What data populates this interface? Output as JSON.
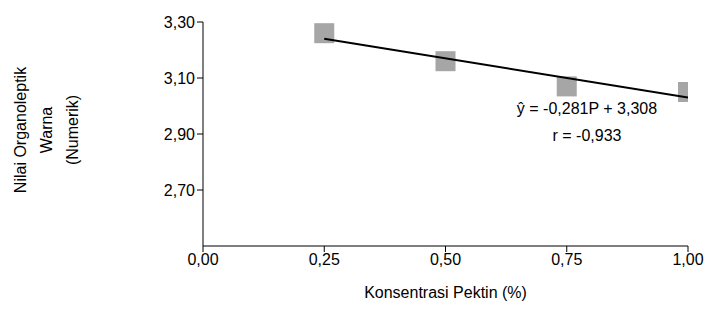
{
  "chart_data": {
    "type": "scatter",
    "x_label": "Konsentrasi Pektin (%)",
    "y_label": [
      "Nilai Organoleptik",
      "Warna",
      "(Numerik)"
    ],
    "annotations": [
      "ŷ = -0,281P + 3,308",
      "r = -0,933"
    ],
    "series": [
      {
        "type": "scatter",
        "color": "#a6a6a6",
        "marker": "square",
        "x": [
          0.25,
          0.5,
          0.75,
          1.0
        ],
        "values": [
          3.26,
          3.16,
          3.07,
          3.05
        ]
      },
      {
        "type": "line",
        "color": "#000000",
        "line_style": "solid",
        "x": [
          0.25,
          1.0
        ],
        "values": [
          3.24,
          3.03
        ]
      }
    ],
    "xlim": [
      0,
      1
    ],
    "xticks": [
      {
        "value": 0,
        "label": "0,00"
      },
      {
        "value": 0.25,
        "label": "0,25"
      },
      {
        "value": 0.5,
        "label": "0,50"
      },
      {
        "value": 0.75,
        "label": "0,75"
      },
      {
        "value": 1,
        "label": "1,00"
      }
    ],
    "ylim": [
      2.5,
      3.3
    ],
    "yticks": [
      {
        "value": 2.7,
        "label": "2,70"
      },
      {
        "value": 2.9,
        "label": "2,90"
      },
      {
        "value": 3.1,
        "label": "3,10"
      },
      {
        "value": 3.3,
        "label": "3,30"
      }
    ],
    "grid": false
  }
}
